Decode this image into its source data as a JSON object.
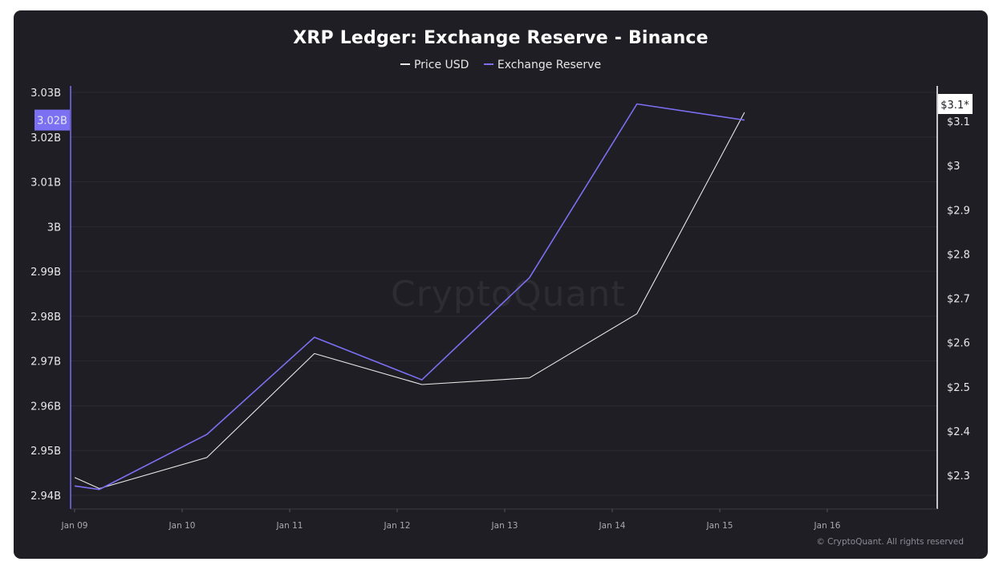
{
  "chart_data": {
    "type": "line",
    "title": "XRP Ledger: Exchange Reserve - Binance",
    "x": [
      "Jan 09",
      "Jan 09",
      "Jan 10",
      "Jan 11",
      "Jan 12",
      "Jan 13",
      "Jan 14",
      "Jan 15"
    ],
    "x_days": [
      9.0,
      9.23,
      10.23,
      11.23,
      12.23,
      13.23,
      14.23,
      15.23
    ],
    "x_ticks": [
      "Jan 09",
      "Jan 10",
      "Jan 11",
      "Jan 12",
      "Jan 13",
      "Jan 14",
      "Jan 15",
      "Jan 16"
    ],
    "series": [
      {
        "name": "Price USD",
        "axis": "right",
        "color": "#e8e8e8",
        "values": [
          2.295,
          2.27,
          2.34,
          2.575,
          2.505,
          2.52,
          2.665,
          3.12
        ]
      },
      {
        "name": "Exchange Reserve",
        "axis": "left",
        "color": "#7b6ff2",
        "values": [
          2.9421,
          2.9413,
          2.9536,
          2.9753,
          2.9658,
          2.9886,
          3.0274,
          3.0238
        ]
      }
    ],
    "left_axis": {
      "ticks": [
        "3.03B",
        "3.02B",
        "3.01B",
        "3B",
        "2.99B",
        "2.98B",
        "2.97B",
        "2.96B",
        "2.95B",
        "2.94B"
      ],
      "tick_values": [
        3.03,
        3.02,
        3.01,
        3.0,
        2.99,
        2.98,
        2.97,
        2.96,
        2.95,
        2.94
      ],
      "current_label": "3.02B",
      "current_value": 3.0238
    },
    "right_axis": {
      "ticks": [
        "$3.1",
        "$3",
        "$2.9",
        "$2.8",
        "$2.7",
        "$2.6",
        "$2.5",
        "$2.4",
        "$2.3"
      ],
      "tick_values": [
        3.1,
        3.0,
        2.9,
        2.8,
        2.7,
        2.6,
        2.5,
        2.4,
        2.3
      ],
      "current_label": "$3.1*",
      "current_value": 3.12
    },
    "grid": true,
    "legend": "top-center"
  },
  "watermark": "CryptoQuant",
  "copyright": "© CryptoQuant. All rights reserved",
  "colors": {
    "background": "#1f1e24",
    "reserve": "#7b6ff2",
    "price": "#e8e8e8"
  }
}
